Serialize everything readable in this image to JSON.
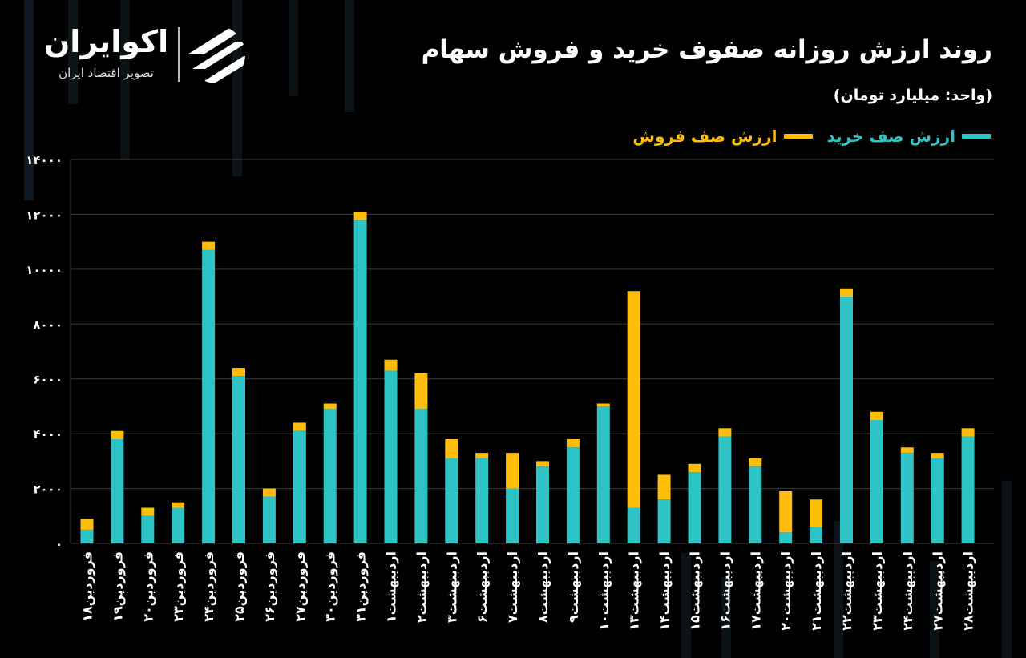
{
  "header": {
    "title": "روند ارزش روزانه صفوف خرید و فروش سهام",
    "unit": "(واحد: میلیارد تومان)"
  },
  "brand": {
    "name": "اکوایران",
    "tagline": "تصویر اقتصاد ایران",
    "logo_icon": "ecoiran-logo-icon"
  },
  "legend": {
    "buy": "ارزش صف خرید",
    "sell": "ارزش صف فروش",
    "position": "top-right"
  },
  "colors": {
    "buy": "#2EC4C6",
    "sell": "#FFBE0B",
    "background": "#000000",
    "grid": "#3a3a3a"
  },
  "chart_data": {
    "type": "bar",
    "stacked": true,
    "grid": true,
    "ylim": [
      0,
      14000
    ],
    "yticks": [
      0,
      2000,
      4000,
      6000,
      8000,
      10000,
      12000,
      14000
    ],
    "ytick_labels": [
      "۰",
      "۲۰۰۰",
      "۴۰۰۰",
      "۶۰۰۰",
      "۸۰۰۰",
      "۱۰۰۰۰",
      "۱۲۰۰۰",
      "۱۴۰۰۰"
    ],
    "categories": [
      "فروردین۱۸",
      "فروردین۱۹",
      "فروردین۲۰",
      "فروردین۲۳",
      "فروردین۲۴",
      "فروردین۲۵",
      "فروردین۲۶",
      "فروردین۲۷",
      "فروردین۳۰",
      "فروردین۳۱",
      "اردیبهشت۱",
      "اردیبهشت۲",
      "اردیبهشت۳",
      "اردیبهشت۶",
      "اردیبهشت۷",
      "اردیبهشت۸",
      "اردیبهشت۹",
      "اردیبهشت۱۰",
      "اردیبهشت۱۳",
      "اردیبهشت۱۴",
      "اردیبهشت۱۵",
      "اردیبهشت۱۶",
      "اردیبهشت۱۷",
      "اردیبهشت۲۰",
      "اردیبهشت۲۱",
      "اردیبهشت۲۲",
      "اردیبهشت۲۳",
      "اردیبهشت۲۴",
      "اردیبهشت۲۷",
      "اردیبهشت۲۸"
    ],
    "series": [
      {
        "name": "ارزش صف خرید",
        "values": [
          500,
          3800,
          1000,
          1300,
          10700,
          6100,
          1700,
          4100,
          4900,
          11800,
          6300,
          4900,
          3100,
          3100,
          2000,
          2800,
          3500,
          5000,
          1300,
          1600,
          2600,
          3900,
          2800,
          400,
          600,
          9000,
          4500,
          3300,
          3100,
          3900
        ]
      },
      {
        "name": "ارزش صف فروش",
        "values": [
          400,
          300,
          300,
          200,
          300,
          300,
          300,
          300,
          200,
          300,
          400,
          1300,
          700,
          200,
          1300,
          200,
          300,
          100,
          7900,
          900,
          300,
          300,
          300,
          1500,
          1000,
          300,
          300,
          200,
          200,
          300
        ]
      }
    ]
  }
}
